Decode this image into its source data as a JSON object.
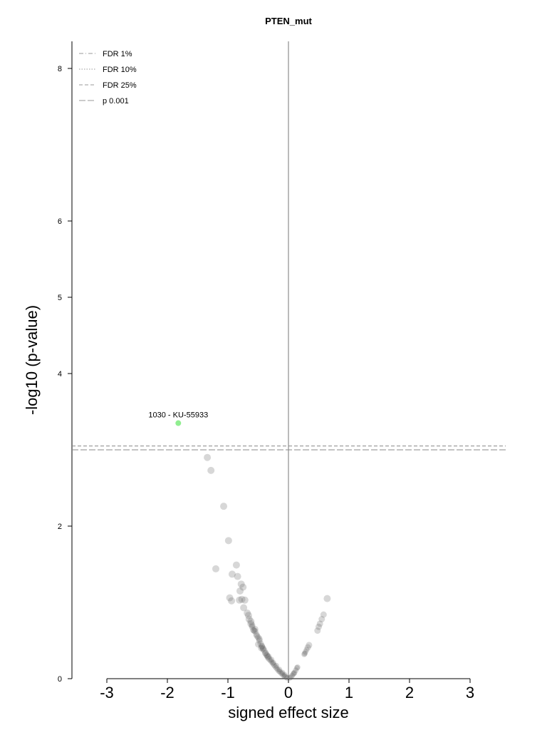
{
  "chart_data": {
    "type": "scatter",
    "title": "PTEN_mut",
    "xlabel": "signed effect size",
    "ylabel": "-log10 (p-value)",
    "xlim": [
      -3,
      3
    ],
    "ylim": [
      0,
      8.4
    ],
    "xticks": [
      "-3",
      "-2",
      "-1",
      "0",
      "1",
      "2",
      "3"
    ],
    "yticks": [
      "0",
      "2",
      "4",
      "5",
      "6",
      "8"
    ],
    "grid": false,
    "legend": {
      "placement": "top-left",
      "entries": [
        {
          "label": "FDR 1%",
          "style": "dashdot"
        },
        {
          "label": "FDR 10%",
          "style": "dotted"
        },
        {
          "label": "FDR 25%",
          "style": "dashed"
        },
        {
          "label": "p 0.001",
          "style": "longdash"
        }
      ]
    },
    "threshold_lines": [
      {
        "name": "FDR 25%",
        "y": 3.05
      },
      {
        "name": "p 0.001",
        "y": 3.0
      }
    ],
    "highlight_color": "#90ee90",
    "point_color": "#606060",
    "annotations": [
      {
        "text": "1030 - KU-55933",
        "x": -1.82,
        "y": 3.35
      }
    ],
    "highlighted_points": [
      {
        "x": -1.82,
        "y": 3.35,
        "label": "1030 - KU-55933"
      }
    ],
    "points": [
      [
        -1.34,
        2.9
      ],
      [
        -1.28,
        2.73
      ],
      [
        -1.07,
        2.26
      ],
      [
        -0.99,
        1.81
      ],
      [
        -1.2,
        1.44
      ],
      [
        -0.86,
        1.49
      ],
      [
        -0.93,
        1.37
      ],
      [
        -0.84,
        1.34
      ],
      [
        -0.78,
        1.24
      ],
      [
        -0.75,
        1.2
      ],
      [
        -0.8,
        1.15
      ],
      [
        -0.97,
        1.06
      ],
      [
        -0.94,
        1.02
      ],
      [
        -0.81,
        1.03
      ],
      [
        -0.77,
        1.04
      ],
      [
        -0.72,
        1.03
      ],
      [
        -0.74,
        0.93
      ],
      [
        -0.68,
        0.86
      ],
      [
        -0.66,
        0.83
      ],
      [
        -0.65,
        0.78
      ],
      [
        -0.62,
        0.72
      ],
      [
        -0.6,
        0.68
      ],
      [
        -0.58,
        0.64
      ],
      [
        -0.55,
        0.62
      ],
      [
        -0.53,
        0.58
      ],
      [
        -0.5,
        0.54
      ],
      [
        -0.48,
        0.5
      ],
      [
        -0.46,
        0.46
      ],
      [
        -0.44,
        0.43
      ],
      [
        -0.42,
        0.4
      ],
      [
        -0.4,
        0.37
      ],
      [
        -0.38,
        0.34
      ],
      [
        -0.36,
        0.31
      ],
      [
        -0.34,
        0.28
      ],
      [
        -0.32,
        0.26
      ],
      [
        -0.3,
        0.24
      ],
      [
        -0.28,
        0.22
      ],
      [
        -0.26,
        0.2
      ],
      [
        -0.24,
        0.18
      ],
      [
        -0.22,
        0.16
      ],
      [
        -0.2,
        0.14
      ],
      [
        -0.18,
        0.12
      ],
      [
        -0.16,
        0.1
      ],
      [
        -0.14,
        0.09
      ],
      [
        -0.12,
        0.07
      ],
      [
        -0.1,
        0.06
      ],
      [
        -0.08,
        0.04
      ],
      [
        -0.06,
        0.03
      ],
      [
        -0.04,
        0.02
      ],
      [
        -0.02,
        0.01
      ],
      [
        -0.5,
        0.45
      ],
      [
        -0.38,
        0.33
      ],
      [
        -0.45,
        0.4
      ],
      [
        -0.35,
        0.3
      ],
      [
        -0.25,
        0.21
      ],
      [
        -0.62,
        0.75
      ],
      [
        -0.55,
        0.65
      ],
      [
        -0.42,
        0.39
      ],
      [
        -0.33,
        0.29
      ],
      [
        -0.28,
        0.25
      ],
      [
        -0.2,
        0.17
      ],
      [
        -0.15,
        0.12
      ],
      [
        -0.1,
        0.08
      ],
      [
        -0.06,
        0.05
      ],
      [
        0.02,
        0.01
      ],
      [
        0.04,
        0.02
      ],
      [
        0.06,
        0.04
      ],
      [
        0.08,
        0.06
      ],
      [
        0.1,
        0.08
      ],
      [
        0.12,
        0.11
      ],
      [
        0.14,
        0.14
      ],
      [
        0.26,
        0.32
      ],
      [
        0.28,
        0.35
      ],
      [
        0.3,
        0.38
      ],
      [
        0.32,
        0.41
      ],
      [
        0.34,
        0.44
      ],
      [
        0.48,
        0.63
      ],
      [
        0.5,
        0.68
      ],
      [
        0.52,
        0.72
      ],
      [
        0.55,
        0.78
      ],
      [
        0.58,
        0.84
      ],
      [
        0.64,
        1.05
      ],
      [
        0.15,
        0.15
      ],
      [
        0.09,
        0.07
      ],
      [
        0.27,
        0.33
      ],
      [
        -0.48,
        0.52
      ],
      [
        -0.52,
        0.56
      ],
      [
        -0.57,
        0.63
      ],
      [
        -0.6,
        0.7
      ],
      [
        -0.44,
        0.42
      ]
    ]
  }
}
